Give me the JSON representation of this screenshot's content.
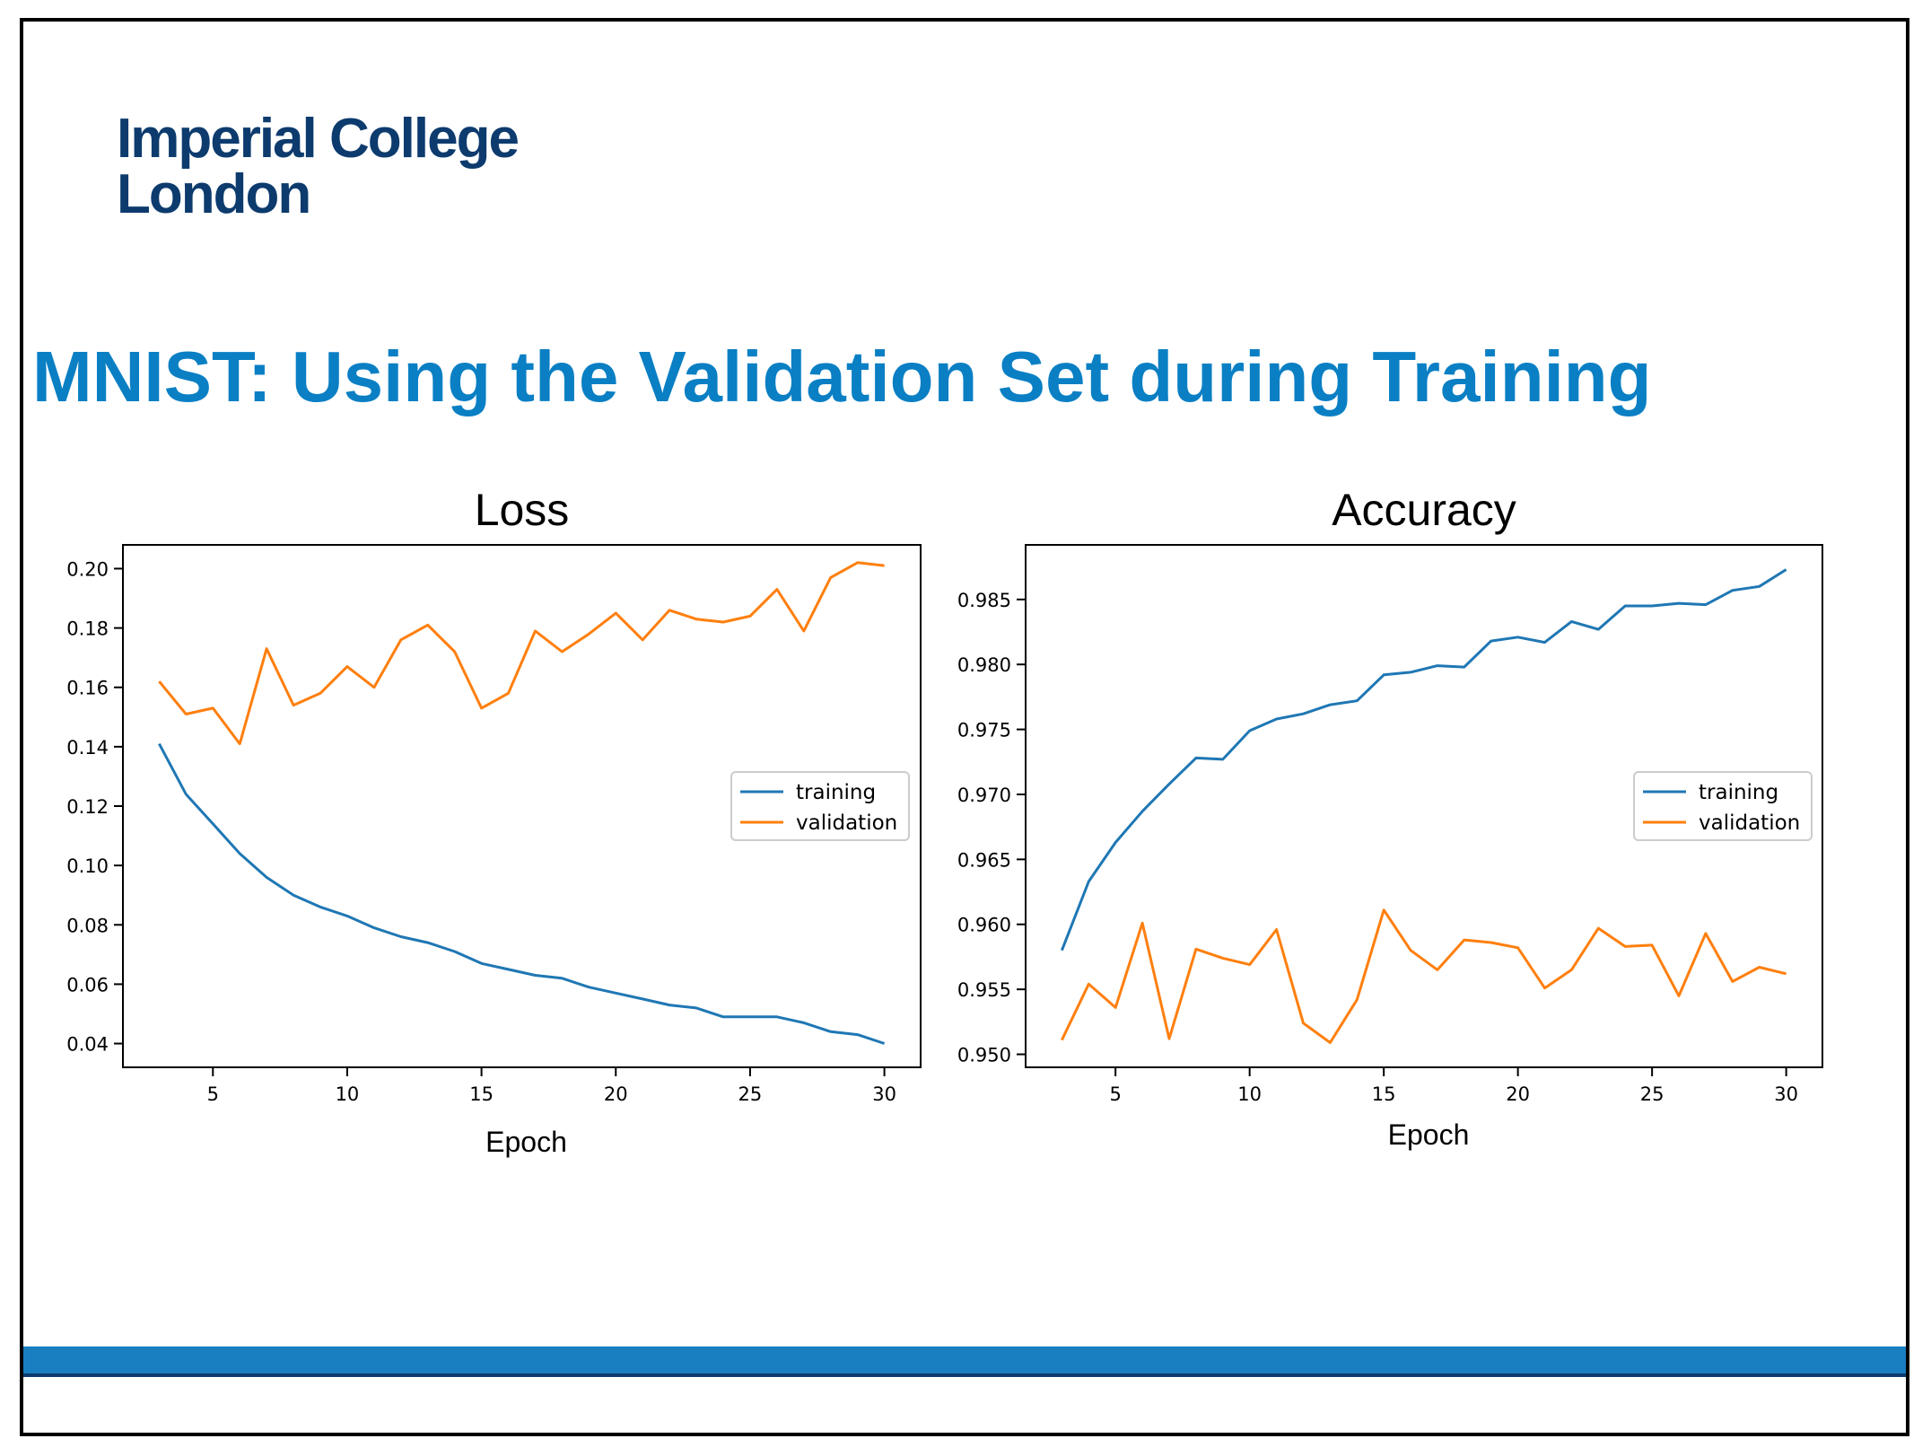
{
  "logo": {
    "line1": "Imperial College",
    "line2": "London"
  },
  "slide_title": "MNIST: Using the Validation Set during Training",
  "colors": {
    "training": "#1f77b4",
    "validation": "#ff7f0e",
    "title": "#0a7fc4",
    "logo": "#0d3b6e",
    "footer": "#1a7fc1"
  },
  "chart_data": [
    {
      "type": "line",
      "title": "Loss",
      "xlabel": "Epoch",
      "ylabel": "",
      "xlim": [
        1.65,
        31.35
      ],
      "ylim": [
        0.032,
        0.208
      ],
      "xticks": [
        5,
        10,
        15,
        20,
        25,
        30
      ],
      "xtick_labels": [
        "5",
        "10",
        "15",
        "20",
        "25",
        "30"
      ],
      "yticks": [
        0.04,
        0.06,
        0.08,
        0.1,
        0.12,
        0.14,
        0.16,
        0.18,
        0.2
      ],
      "ytick_labels": [
        "0.04",
        "0.06",
        "0.08",
        "0.10",
        "0.12",
        "0.14",
        "0.16",
        "0.18",
        "0.20"
      ],
      "legend": "center-right",
      "x": [
        3,
        4,
        5,
        6,
        7,
        8,
        9,
        10,
        11,
        12,
        13,
        14,
        15,
        16,
        17,
        18,
        19,
        20,
        21,
        22,
        23,
        24,
        25,
        26,
        27,
        28,
        29,
        30
      ],
      "series": [
        {
          "name": "training",
          "color": "#1f77b4",
          "values": [
            0.141,
            0.124,
            0.114,
            0.104,
            0.096,
            0.09,
            0.086,
            0.083,
            0.079,
            0.076,
            0.074,
            0.071,
            0.067,
            0.065,
            0.063,
            0.062,
            0.059,
            0.057,
            0.055,
            0.053,
            0.052,
            0.049,
            0.049,
            0.049,
            0.047,
            0.044,
            0.043,
            0.04
          ]
        },
        {
          "name": "validation",
          "color": "#ff7f0e",
          "values": [
            0.162,
            0.151,
            0.153,
            0.141,
            0.173,
            0.154,
            0.158,
            0.167,
            0.16,
            0.176,
            0.181,
            0.172,
            0.153,
            0.158,
            0.179,
            0.172,
            0.178,
            0.185,
            0.176,
            0.186,
            0.183,
            0.182,
            0.184,
            0.193,
            0.179,
            0.197,
            0.202,
            0.201
          ]
        }
      ]
    },
    {
      "type": "line",
      "title": "Accuracy",
      "xlabel": "Epoch",
      "ylabel": "",
      "xlim": [
        1.65,
        31.35
      ],
      "ylim": [
        0.949,
        0.9892
      ],
      "xticks": [
        5,
        10,
        15,
        20,
        25,
        30
      ],
      "xtick_labels": [
        "5",
        "10",
        "15",
        "20",
        "25",
        "30"
      ],
      "yticks": [
        0.95,
        0.955,
        0.96,
        0.965,
        0.97,
        0.975,
        0.98,
        0.985
      ],
      "ytick_labels": [
        "0.950",
        "0.955",
        "0.960",
        "0.965",
        "0.970",
        "0.975",
        "0.980",
        "0.985"
      ],
      "legend": "center-right",
      "x": [
        3,
        4,
        5,
        6,
        7,
        8,
        9,
        10,
        11,
        12,
        13,
        14,
        15,
        16,
        17,
        18,
        19,
        20,
        21,
        22,
        23,
        24,
        25,
        26,
        27,
        28,
        29,
        30
      ],
      "series": [
        {
          "name": "training",
          "color": "#1f77b4",
          "values": [
            0.958,
            0.9633,
            0.9663,
            0.9687,
            0.9708,
            0.9728,
            0.9727,
            0.9749,
            0.9758,
            0.9762,
            0.9769,
            0.9772,
            0.9792,
            0.9794,
            0.9799,
            0.9798,
            0.9818,
            0.9821,
            0.9817,
            0.9833,
            0.9827,
            0.9845,
            0.9845,
            0.9847,
            0.9846,
            0.9857,
            0.986,
            0.9873
          ]
        },
        {
          "name": "validation",
          "color": "#ff7f0e",
          "values": [
            0.9511,
            0.9554,
            0.9536,
            0.9601,
            0.9512,
            0.9581,
            0.9574,
            0.9569,
            0.9596,
            0.9524,
            0.9509,
            0.9542,
            0.9611,
            0.958,
            0.9565,
            0.9588,
            0.9586,
            0.9582,
            0.9551,
            0.9565,
            0.9597,
            0.9583,
            0.9584,
            0.9545,
            0.9593,
            0.9556,
            0.9567,
            0.9562
          ]
        }
      ]
    }
  ]
}
